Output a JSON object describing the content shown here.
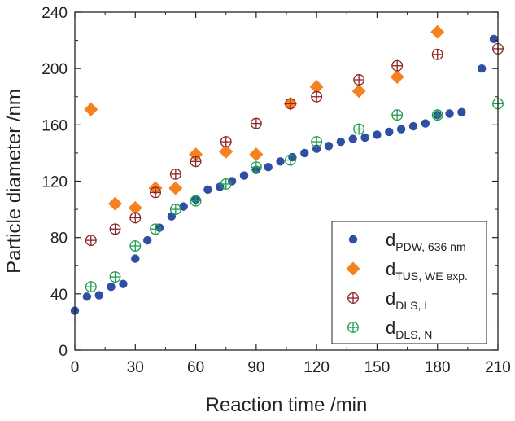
{
  "chart_data": {
    "type": "scatter",
    "xlabel": "Reaction time /min",
    "ylabel": "Particle diameter /nm",
    "xlim": [
      0,
      210
    ],
    "ylim": [
      0,
      240
    ],
    "xticks": [
      0,
      30,
      60,
      90,
      120,
      150,
      180,
      210
    ],
    "yticks": [
      0,
      40,
      80,
      120,
      160,
      200,
      240
    ],
    "grid": false,
    "legend_position": "bottom-right",
    "series": [
      {
        "name_main": "d",
        "name_sub": "PDW, 636 nm",
        "marker": "filled-circle",
        "color": "#2e4fa3",
        "points": [
          [
            0,
            28
          ],
          [
            6,
            38
          ],
          [
            12,
            39
          ],
          [
            18,
            45
          ],
          [
            24,
            47
          ],
          [
            30,
            65
          ],
          [
            36,
            78
          ],
          [
            42,
            87
          ],
          [
            48,
            95
          ],
          [
            54,
            102
          ],
          [
            60,
            107
          ],
          [
            66,
            114
          ],
          [
            72,
            116
          ],
          [
            78,
            120
          ],
          [
            84,
            124
          ],
          [
            90,
            128
          ],
          [
            96,
            130
          ],
          [
            102,
            134
          ],
          [
            108,
            137
          ],
          [
            114,
            140
          ],
          [
            120,
            143
          ],
          [
            126,
            145
          ],
          [
            132,
            148
          ],
          [
            138,
            150
          ],
          [
            144,
            151
          ],
          [
            150,
            153
          ],
          [
            156,
            155
          ],
          [
            162,
            157
          ],
          [
            168,
            159
          ],
          [
            174,
            161
          ],
          [
            180,
            167
          ],
          [
            186,
            168
          ],
          [
            192,
            169
          ],
          [
            202,
            200
          ],
          [
            208,
            221
          ]
        ]
      },
      {
        "name_main": "d",
        "name_sub": "TUS, WE exp.",
        "marker": "filled-diamond",
        "color": "#f58220",
        "points": [
          [
            8,
            171
          ],
          [
            20,
            104
          ],
          [
            30,
            101
          ],
          [
            40,
            115
          ],
          [
            50,
            115
          ],
          [
            60,
            139
          ],
          [
            75,
            141
          ],
          [
            90,
            139
          ],
          [
            107,
            175
          ],
          [
            120,
            187
          ],
          [
            141,
            184
          ],
          [
            160,
            194
          ],
          [
            180,
            226
          ]
        ]
      },
      {
        "name_main": "d",
        "name_sub": "DLS, I",
        "marker": "crossed-circle",
        "color": "#8b2323",
        "points": [
          [
            8,
            78
          ],
          [
            20,
            86
          ],
          [
            30,
            94
          ],
          [
            40,
            112
          ],
          [
            50,
            125
          ],
          [
            60,
            134
          ],
          [
            75,
            148
          ],
          [
            90,
            161
          ],
          [
            107,
            175
          ],
          [
            120,
            180
          ],
          [
            141,
            192
          ],
          [
            160,
            202
          ],
          [
            180,
            210
          ],
          [
            210,
            214
          ]
        ]
      },
      {
        "name_main": "d",
        "name_sub": "DLS, N",
        "marker": "crossed-circle",
        "color": "#1e9a4b",
        "points": [
          [
            8,
            45
          ],
          [
            20,
            52
          ],
          [
            30,
            74
          ],
          [
            40,
            86
          ],
          [
            50,
            100
          ],
          [
            60,
            106
          ],
          [
            75,
            118
          ],
          [
            90,
            130
          ],
          [
            107,
            135
          ],
          [
            120,
            148
          ],
          [
            141,
            157
          ],
          [
            160,
            167
          ],
          [
            180,
            167
          ],
          [
            210,
            175
          ]
        ]
      }
    ]
  }
}
